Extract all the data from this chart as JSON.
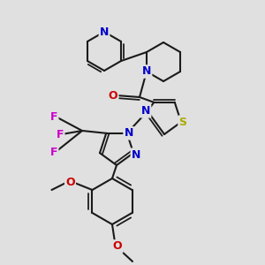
{
  "bg_color": "#e0e0e0",
  "bond_color": "#1a1a1a",
  "bond_width": 1.5,
  "figure_size": [
    3.0,
    3.0
  ],
  "dpi": 100,
  "atom_colors": {
    "N": "#0000cc",
    "O": "#cc0000",
    "S": "#aaaa00",
    "F": "#cc00cc",
    "C": "#1a1a1a"
  }
}
